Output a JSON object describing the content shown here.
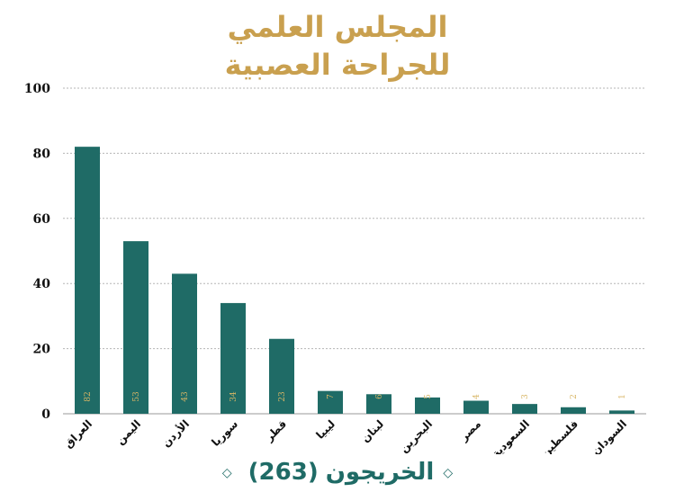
{
  "title_line1": "المجلس العلمي",
  "title_line2": "للجراحة العصبية",
  "footer": {
    "label": "الخريجون",
    "count": "(263)",
    "deco_left": "◇",
    "deco_right": "◇"
  },
  "colors": {
    "bar": "#1f6b66",
    "title": "#c9a04f",
    "value_label": "#d8b665",
    "grid": "#b5b5b5"
  },
  "chart_data": {
    "type": "bar",
    "categories": [
      "العراق",
      "اليمن",
      "الأردن",
      "سوريا",
      "قطر",
      "ليبيا",
      "لبنان",
      "البحرين",
      "مصر",
      "السعودية",
      "فلسطين",
      "السودان"
    ],
    "values": [
      82,
      53,
      43,
      34,
      23,
      7,
      6,
      5,
      4,
      3,
      2,
      1
    ],
    "value_labels": [
      "82",
      "53",
      "43",
      "34",
      "23",
      "7",
      "6",
      "5",
      "4",
      "3",
      "2",
      "1"
    ],
    "ylim": [
      0,
      100
    ],
    "yticks": [
      0,
      20,
      40,
      60,
      80,
      100
    ],
    "ytick_labels": [
      "0",
      "20",
      "40",
      "60",
      "80",
      "100"
    ],
    "grid": true,
    "grid_style": "dashed",
    "legend": false
  }
}
